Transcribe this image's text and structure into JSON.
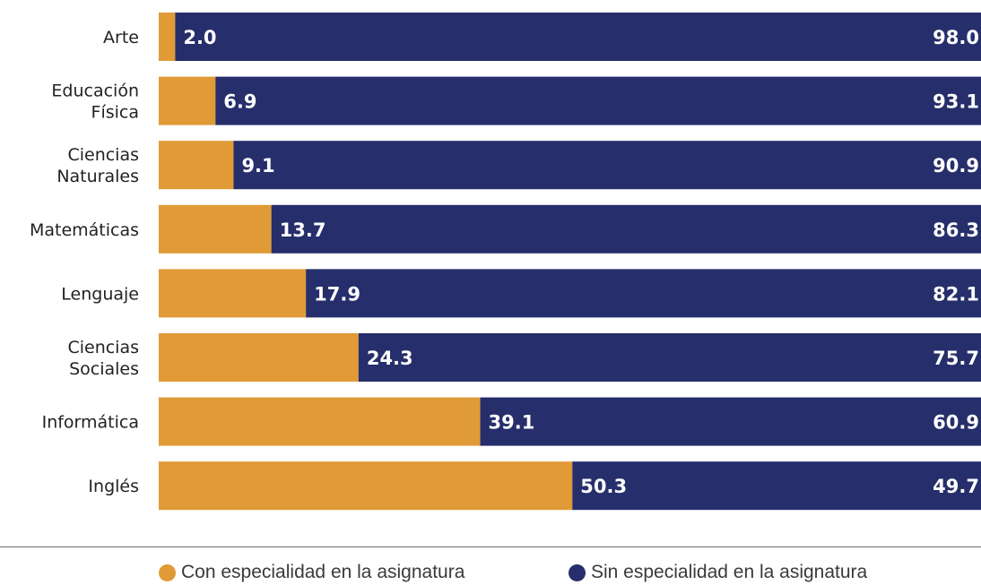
{
  "colors": {
    "con": "#E09A36",
    "sin": "#262E6B"
  },
  "legend": [
    {
      "label": "Con especialidad en la asignatura",
      "color": "#E09A36"
    },
    {
      "label": "Sin especialidad en la asignatura",
      "color": "#262E6B"
    }
  ],
  "chart_data": {
    "type": "bar",
    "orientation": "horizontal",
    "stacked": true,
    "categories": [
      [
        "Arte"
      ],
      [
        "Educación",
        "Física"
      ],
      [
        "Ciencias",
        "Naturales"
      ],
      [
        "Matemáticas"
      ],
      [
        "Lenguaje"
      ],
      [
        "Ciencias",
        "Sociales"
      ],
      [
        "Informática"
      ],
      [
        "Inglés"
      ]
    ],
    "series": [
      {
        "name": "Con especialidad en la asignatura",
        "values": [
          2.0,
          6.9,
          9.1,
          13.7,
          17.9,
          24.3,
          39.1,
          50.3
        ]
      },
      {
        "name": "Sin especialidad en la asignatura",
        "values": [
          98.0,
          93.1,
          90.9,
          86.3,
          82.1,
          75.7,
          60.9,
          49.7
        ]
      }
    ],
    "xlim": [
      0,
      100
    ],
    "grid": false,
    "legend_position": "bottom"
  }
}
